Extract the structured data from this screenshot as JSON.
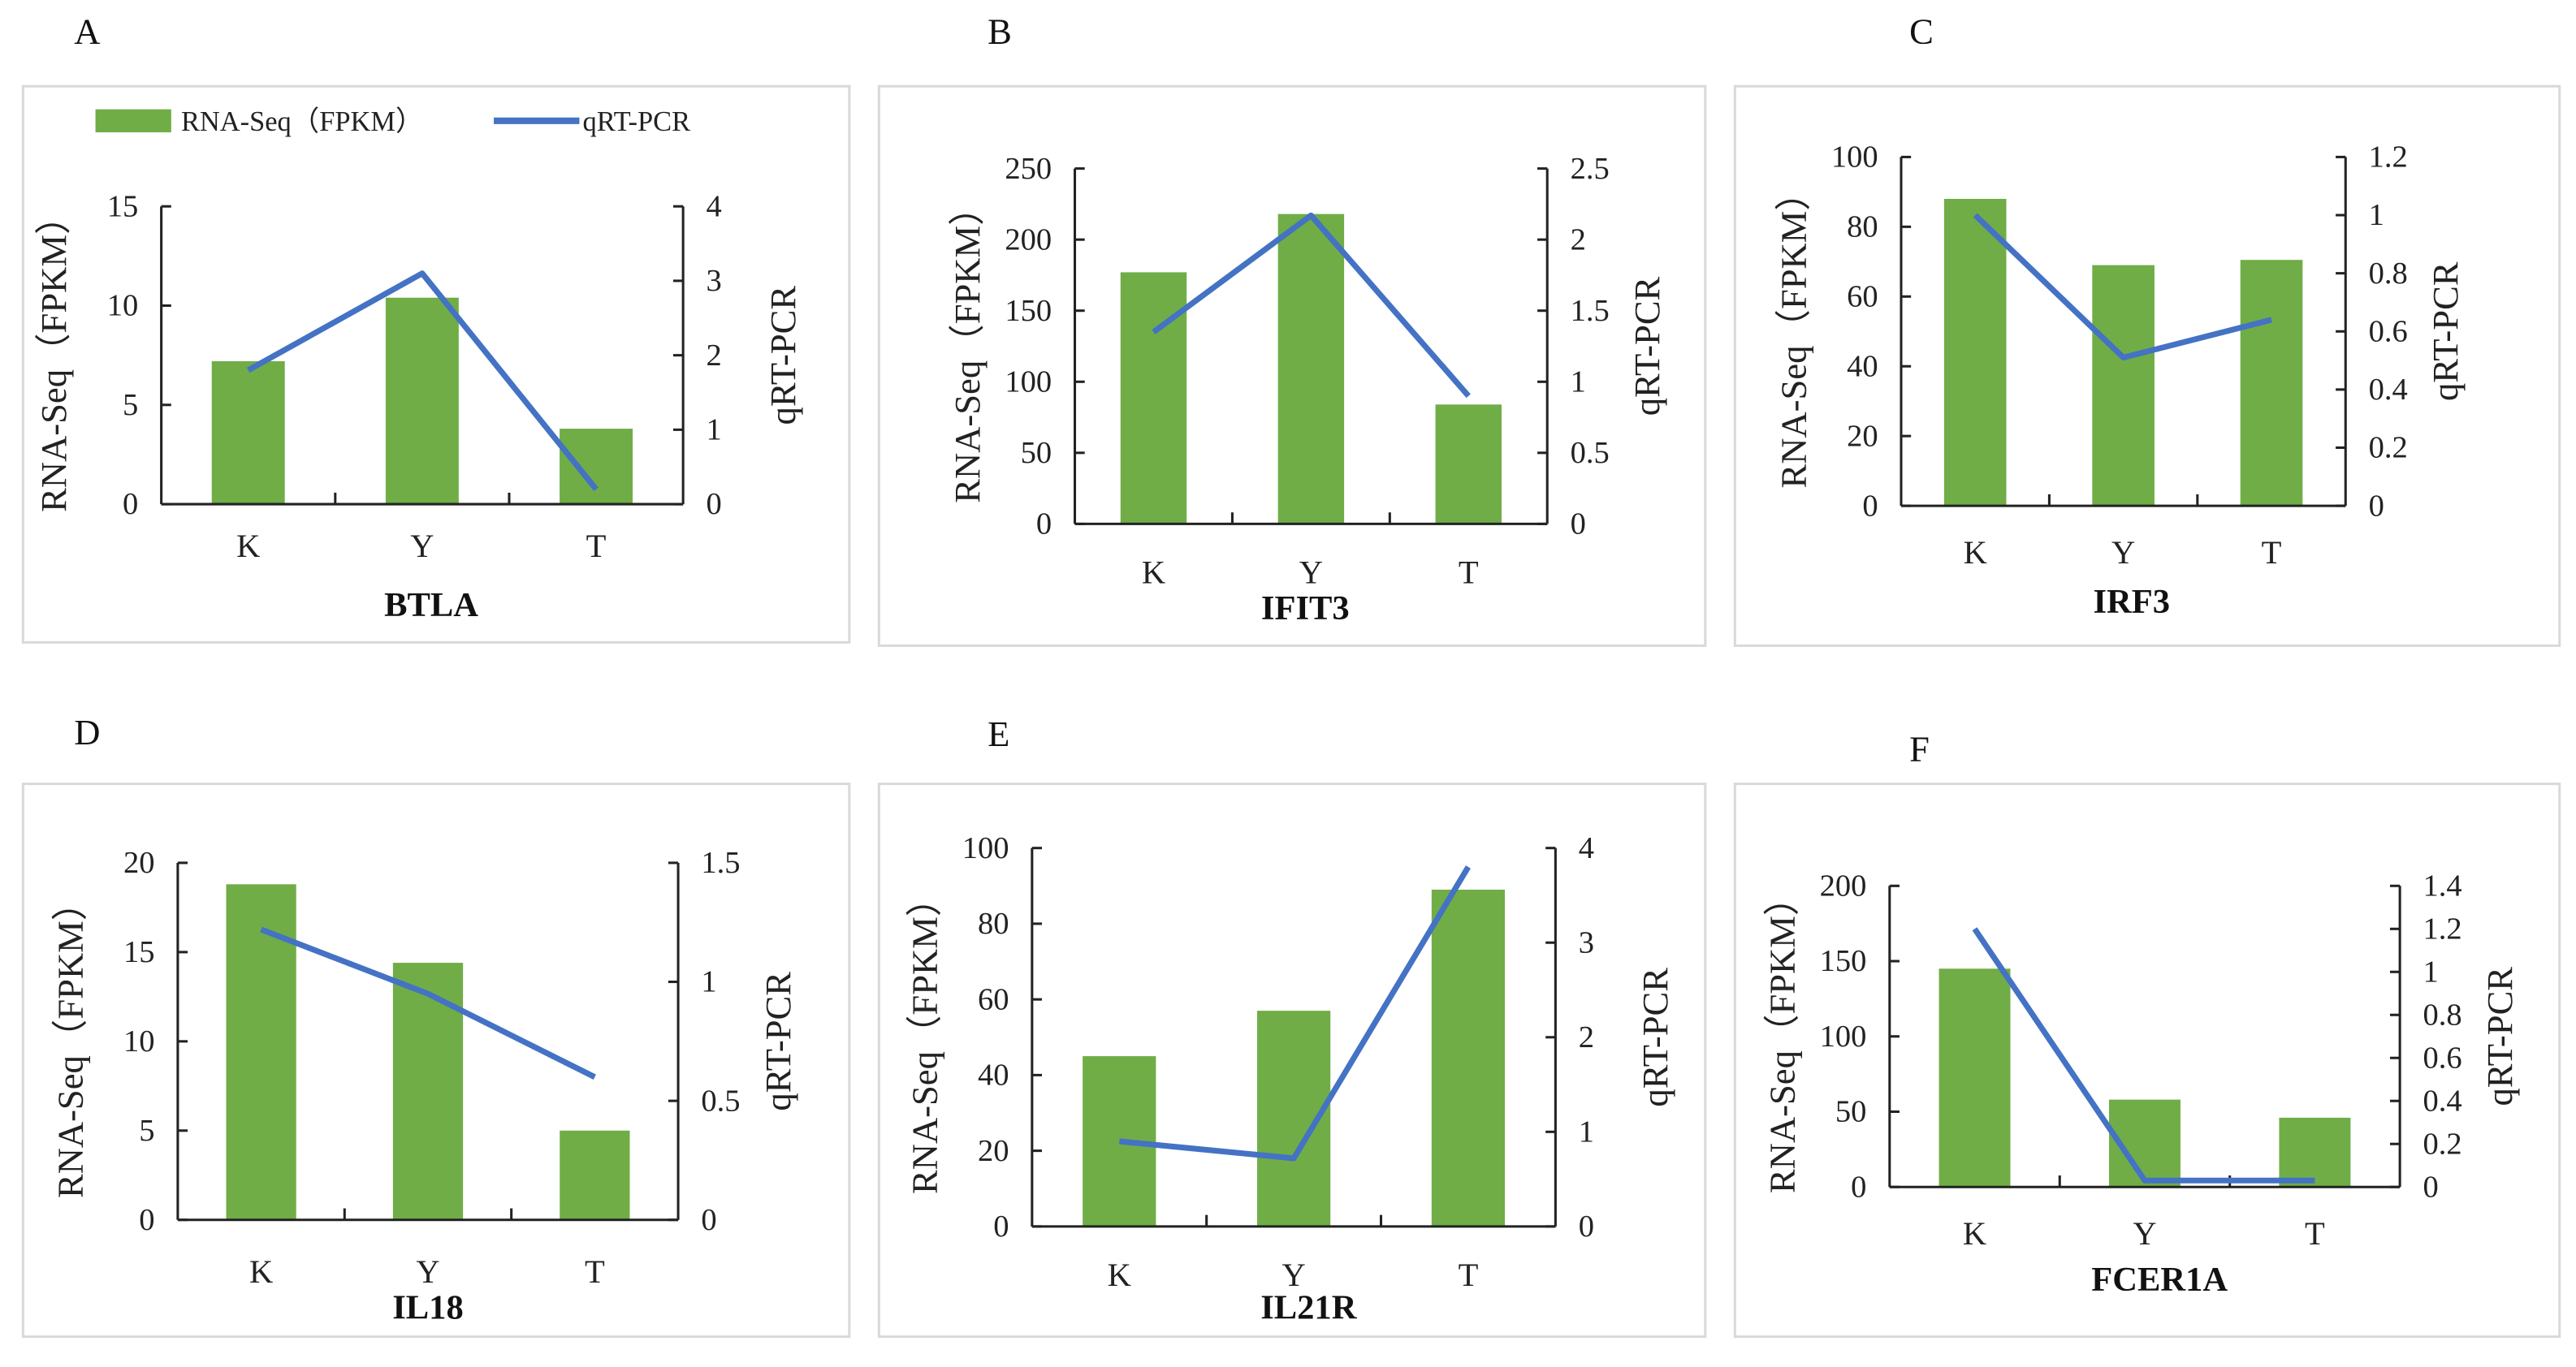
{
  "colors": {
    "bar": "#70AD47",
    "line": "#4472C4",
    "axis": "#222222",
    "frame": "#d9d9d9"
  },
  "chart_data": [
    {
      "panel": "A",
      "type": "bar+line",
      "title": "BTLA",
      "categories": [
        "K",
        "Y",
        "T"
      ],
      "ylabel": "RNA-Seq（FPKM）",
      "y2label": "qRT-PCR",
      "ylim": [
        0,
        15
      ],
      "yticks": [
        0,
        5,
        10,
        15
      ],
      "y2lim": [
        0,
        4
      ],
      "y2ticks": [
        0,
        1,
        2,
        3,
        4
      ],
      "series": [
        {
          "name": "RNA-Seq（FPKM）",
          "kind": "bar",
          "values": [
            7.2,
            10.4,
            3.8
          ]
        },
        {
          "name": "qRT-PCR",
          "kind": "line",
          "axis": "right",
          "values": [
            1.8,
            3.1,
            0.2
          ]
        }
      ],
      "legend": {
        "position": "top",
        "items": [
          "RNA-Seq（FPKM）",
          "qRT-PCR"
        ]
      }
    },
    {
      "panel": "B",
      "type": "bar+line",
      "title": "IFIT3",
      "categories": [
        "K",
        "Y",
        "T"
      ],
      "ylabel": "RNA-Seq（FPKM）",
      "y2label": "qRT-PCR",
      "ylim": [
        0,
        250
      ],
      "yticks": [
        0,
        50,
        100,
        150,
        200,
        250
      ],
      "y2lim": [
        0,
        2.5
      ],
      "y2ticks": [
        0,
        0.5,
        1,
        1.5,
        2,
        2.5
      ],
      "series": [
        {
          "name": "RNA-Seq（FPKM）",
          "kind": "bar",
          "values": [
            177,
            218,
            84
          ]
        },
        {
          "name": "qRT-PCR",
          "kind": "line",
          "axis": "right",
          "values": [
            1.35,
            2.17,
            0.9
          ]
        }
      ]
    },
    {
      "panel": "C",
      "type": "bar+line",
      "title": "IRF3",
      "categories": [
        "K",
        "Y",
        "T"
      ],
      "ylabel": "RNA-Seq（FPKM）",
      "y2label": "qRT-PCR",
      "ylim": [
        0,
        100
      ],
      "yticks": [
        0,
        20,
        40,
        60,
        80,
        100
      ],
      "y2lim": [
        0,
        1.2
      ],
      "y2ticks": [
        0,
        0.2,
        0.4,
        0.6,
        0.8,
        1,
        1.2
      ],
      "series": [
        {
          "name": "RNA-Seq（FPKM）",
          "kind": "bar",
          "values": [
            88,
            69,
            70.5
          ]
        },
        {
          "name": "qRT-PCR",
          "kind": "line",
          "axis": "right",
          "values": [
            1.0,
            0.51,
            0.64
          ]
        }
      ]
    },
    {
      "panel": "D",
      "type": "bar+line",
      "title": "IL18",
      "categories": [
        "K",
        "Y",
        "T"
      ],
      "ylabel": "RNA-Seq（FPKM）",
      "y2label": "qRT-PCR",
      "ylim": [
        0,
        20
      ],
      "yticks": [
        0,
        5,
        10,
        15,
        20
      ],
      "y2lim": [
        0,
        1.5
      ],
      "y2ticks": [
        0,
        0.5,
        1,
        1.5
      ],
      "series": [
        {
          "name": "RNA-Seq（FPKM）",
          "kind": "bar",
          "values": [
            18.8,
            14.4,
            5.0
          ]
        },
        {
          "name": "qRT-PCR",
          "kind": "line",
          "axis": "right",
          "values": [
            1.22,
            0.95,
            0.6
          ]
        }
      ]
    },
    {
      "panel": "E",
      "type": "bar+line",
      "title": "IL21R",
      "categories": [
        "K",
        "Y",
        "T"
      ],
      "ylabel": "RNA-Seq（FPKM）",
      "y2label": "qRT-PCR",
      "ylim": [
        0,
        100
      ],
      "yticks": [
        0,
        20,
        40,
        60,
        80,
        100
      ],
      "y2lim": [
        0,
        4
      ],
      "y2ticks": [
        0,
        1,
        2,
        3,
        4
      ],
      "series": [
        {
          "name": "RNA-Seq（FPKM）",
          "kind": "bar",
          "values": [
            45,
            57,
            89
          ]
        },
        {
          "name": "qRT-PCR",
          "kind": "line",
          "axis": "right",
          "values": [
            0.9,
            0.72,
            3.8
          ]
        }
      ]
    },
    {
      "panel": "F",
      "type": "bar+line",
      "title": "FCER1A",
      "categories": [
        "K",
        "Y",
        "T"
      ],
      "ylabel": "RNA-Seq（FPKM）",
      "y2label": "qRT-PCR",
      "ylim": [
        0,
        200
      ],
      "yticks": [
        0,
        50,
        100,
        150,
        200
      ],
      "y2lim": [
        0,
        1.4
      ],
      "y2ticks": [
        0,
        0.2,
        0.4,
        0.6,
        0.8,
        1,
        1.2,
        1.4
      ],
      "series": [
        {
          "name": "RNA-Seq（FPKM）",
          "kind": "bar",
          "values": [
            145,
            58,
            46
          ]
        },
        {
          "name": "qRT-PCR",
          "kind": "line",
          "axis": "right",
          "values": [
            1.2,
            0.03,
            0.03
          ]
        }
      ]
    }
  ]
}
